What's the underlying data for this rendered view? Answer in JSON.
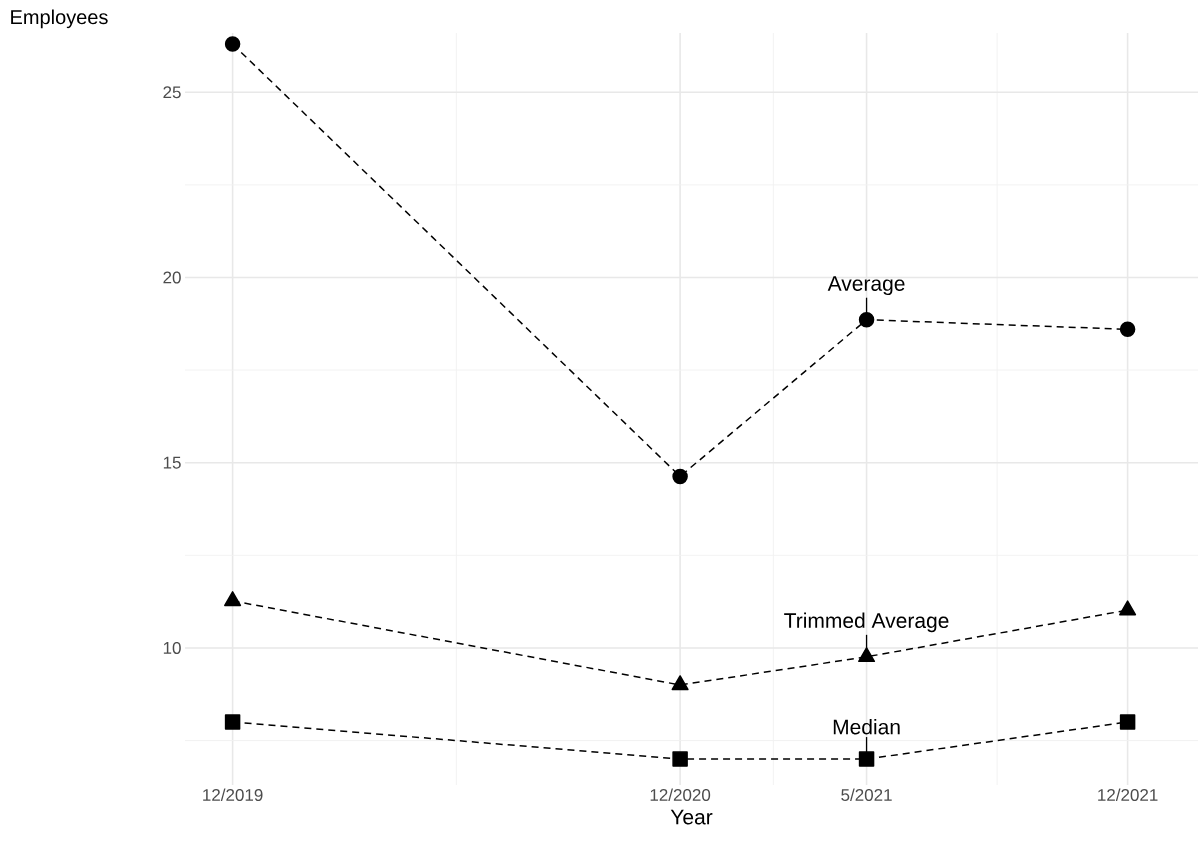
{
  "chart_data": {
    "type": "line",
    "xlabel": "Year",
    "ylabel": "Employees",
    "x": [
      "2019-12",
      "2020-12",
      "2021-05",
      "2021-12"
    ],
    "series": [
      {
        "color": "#000000",
        "marker": "circle",
        "values": [
          26.3,
          14.63,
          18.86,
          18.6
        ]
      },
      {
        "color": "#000000",
        "marker": "triangle",
        "values": [
          11.27,
          9.0,
          9.76,
          11.02
        ]
      },
      {
        "color": "#000000",
        "marker": "square",
        "values": [
          8.0,
          7.0,
          7.0,
          8.0
        ]
      }
    ],
    "line_style": "dashed",
    "grid": true,
    "xlim": [
      "2019-10-23",
      "2022-01-28"
    ],
    "ylim": [
      6.3,
      26.6
    ],
    "xticks": [
      {
        "value": "2019-12",
        "label": "12/2019"
      },
      {
        "value": "2020-12",
        "label": "12/2020"
      },
      {
        "value": "2021-05",
        "label": "5/2021"
      },
      {
        "value": "2021-12",
        "label": "12/2021"
      }
    ],
    "yticks": [
      10,
      15,
      20,
      25
    ],
    "annotations": [
      {
        "text": "Average",
        "x": "2021-05",
        "y": 18.86
      },
      {
        "text": "Trimmed Average",
        "x": "2021-05",
        "y": 9.76
      },
      {
        "text": "Median",
        "x": "2021-05",
        "y": 7.0
      }
    ]
  }
}
